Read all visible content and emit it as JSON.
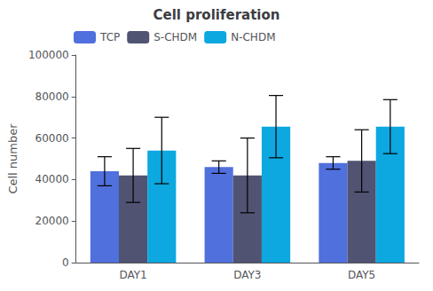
{
  "chart_data": {
    "type": "bar",
    "title": "Cell proliferation",
    "ylabel": "Cell number",
    "categories": [
      "DAY1",
      "DAY3",
      "DAY5"
    ],
    "series": [
      {
        "name": "TCP",
        "values": [
          44000,
          46000,
          48000
        ],
        "errors": [
          7000,
          3000,
          3000
        ]
      },
      {
        "name": "S-CHDM",
        "values": [
          42000,
          42000,
          49000
        ],
        "errors": [
          13000,
          18000,
          15000
        ]
      },
      {
        "name": "N-CHDM",
        "values": [
          54000,
          65500,
          65500
        ],
        "errors": [
          16000,
          15000,
          13000
        ]
      }
    ],
    "ylim": [
      0,
      100000
    ],
    "yticks": [
      0,
      20000,
      40000,
      60000,
      80000,
      100000
    ],
    "grid": false,
    "legend": "upper left"
  }
}
